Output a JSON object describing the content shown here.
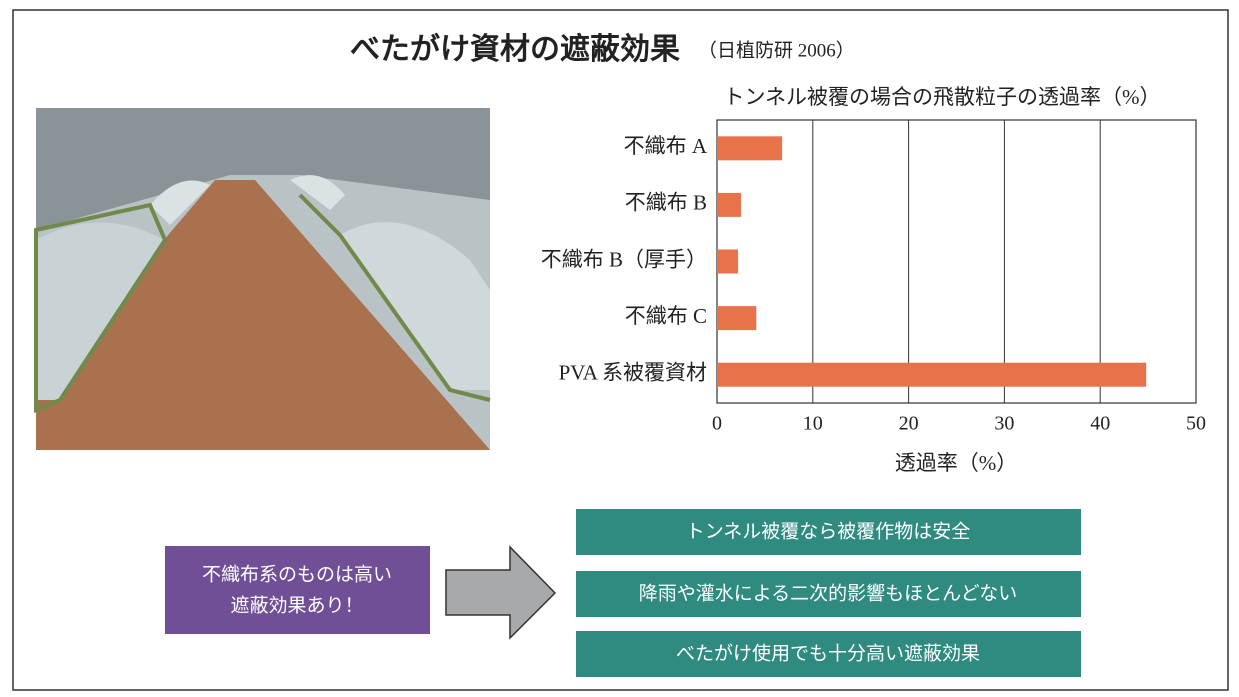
{
  "title": "べたがけ資材の遮蔽効果",
  "title_note": "（日植防研 2006）",
  "chart_data": {
    "type": "barh",
    "title": "トンネル被覆の場合の飛散粒子の透過率（%）",
    "xlabel": "透過率（%）",
    "categories": [
      "不織布 A",
      "不織布 B",
      "不織布 B（厚手）",
      "不織布 C",
      "PVA 系被覆資材"
    ],
    "values": [
      6.8,
      2.5,
      2.2,
      4.1,
      44.8
    ],
    "color": "#e8734a",
    "xlim": [
      0,
      50
    ],
    "xticks": [
      0,
      10,
      20,
      30,
      40,
      50
    ],
    "grid": true
  },
  "conclusion": {
    "lines": [
      "不織布系のものは高い",
      "遮蔽効果あり！"
    ]
  },
  "points": [
    "トンネル被覆なら被覆作物は安全",
    "降雨や灌水による二次的影響もほとんどない",
    "べたがけ使用でも十分高い遮蔽効果"
  ]
}
